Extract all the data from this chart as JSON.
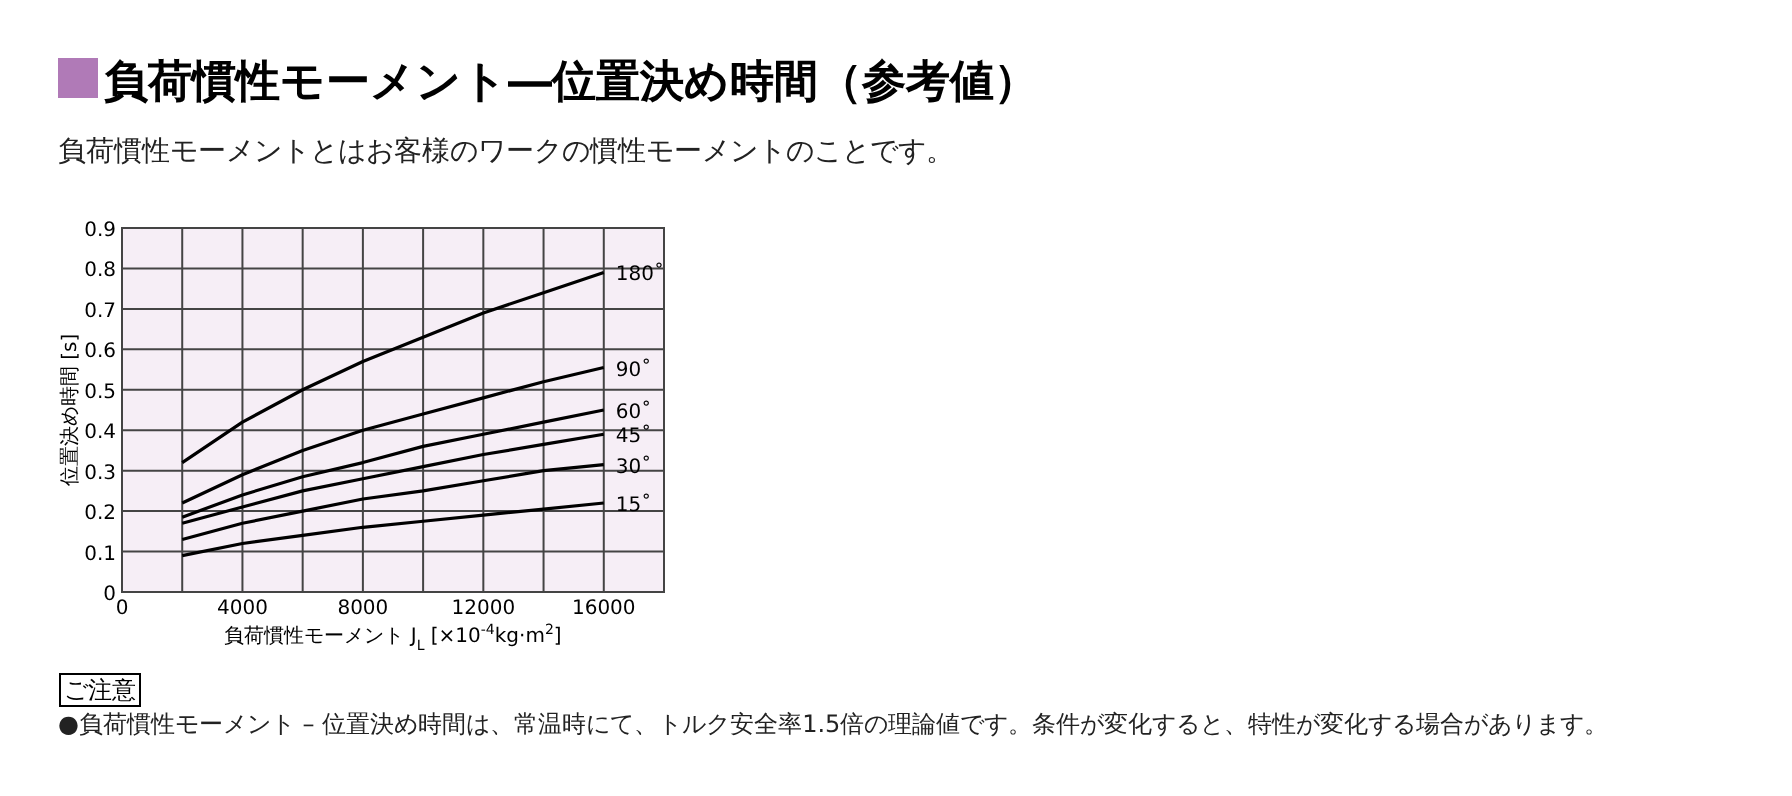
{
  "chart_data": {
    "type": "line",
    "title": "負荷慣性モーメント―位置決め時間（参考値）",
    "subtitle": "負荷慣性モーメントとはお客様のワークの慣性モーメントのことです。",
    "xlabel": "負荷慣性モーメント J$_{L}$ [×10$^{-4}$kg·m$^{2}$]",
    "ylabel": "位置決め時間 [s]",
    "annotations": [
      "ご注意",
      "●負荷慣性モーメント – 位置決め時間は、常温時にて、トルク安全率1.5倍の理論値です。条件が変化すると、特性が変化する場合があります。"
    ],
    "x": [
      2000,
      4000,
      6000,
      8000,
      10000,
      12000,
      14000,
      16000
    ],
    "series": [
      {
        "name": "180˚",
        "color": "#000000",
        "values": [
          0.32,
          0.42,
          0.5,
          0.57,
          0.63,
          0.69,
          0.74,
          0.79
        ]
      },
      {
        "name": "90˚",
        "color": "#000000",
        "values": [
          0.22,
          0.29,
          0.35,
          0.4,
          0.44,
          0.48,
          0.52,
          0.555
        ]
      },
      {
        "name": "60˚",
        "color": "#000000",
        "values": [
          0.185,
          0.24,
          0.285,
          0.32,
          0.36,
          0.39,
          0.42,
          0.45
        ]
      },
      {
        "name": "45˚",
        "color": "#000000",
        "values": [
          0.17,
          0.21,
          0.25,
          0.28,
          0.31,
          0.34,
          0.365,
          0.39
        ]
      },
      {
        "name": "30˚",
        "color": "#000000",
        "values": [
          0.13,
          0.17,
          0.2,
          0.23,
          0.25,
          0.275,
          0.3,
          0.315
        ]
      },
      {
        "name": "15˚",
        "color": "#000000",
        "values": [
          0.09,
          0.12,
          0.14,
          0.16,
          0.175,
          0.19,
          0.205,
          0.22
        ]
      }
    ],
    "xlim": [
      0,
      18000
    ],
    "ylim": [
      0,
      0.9
    ],
    "xticks": [
      0,
      {
        "value": 2000,
        "label": null
      },
      4000,
      {
        "value": 6000,
        "label": null
      },
      8000,
      {
        "value": 10000,
        "label": null
      },
      12000,
      {
        "value": 14000,
        "label": null
      },
      16000,
      {
        "value": 18000,
        "label": null
      }
    ],
    "yticks": [
      0,
      0.1,
      0.2,
      0.3,
      0.4,
      0.5,
      0.6,
      0.7,
      0.8,
      0.9
    ],
    "grid": true,
    "legend": false,
    "marker": "none",
    "line_style": "solid"
  }
}
